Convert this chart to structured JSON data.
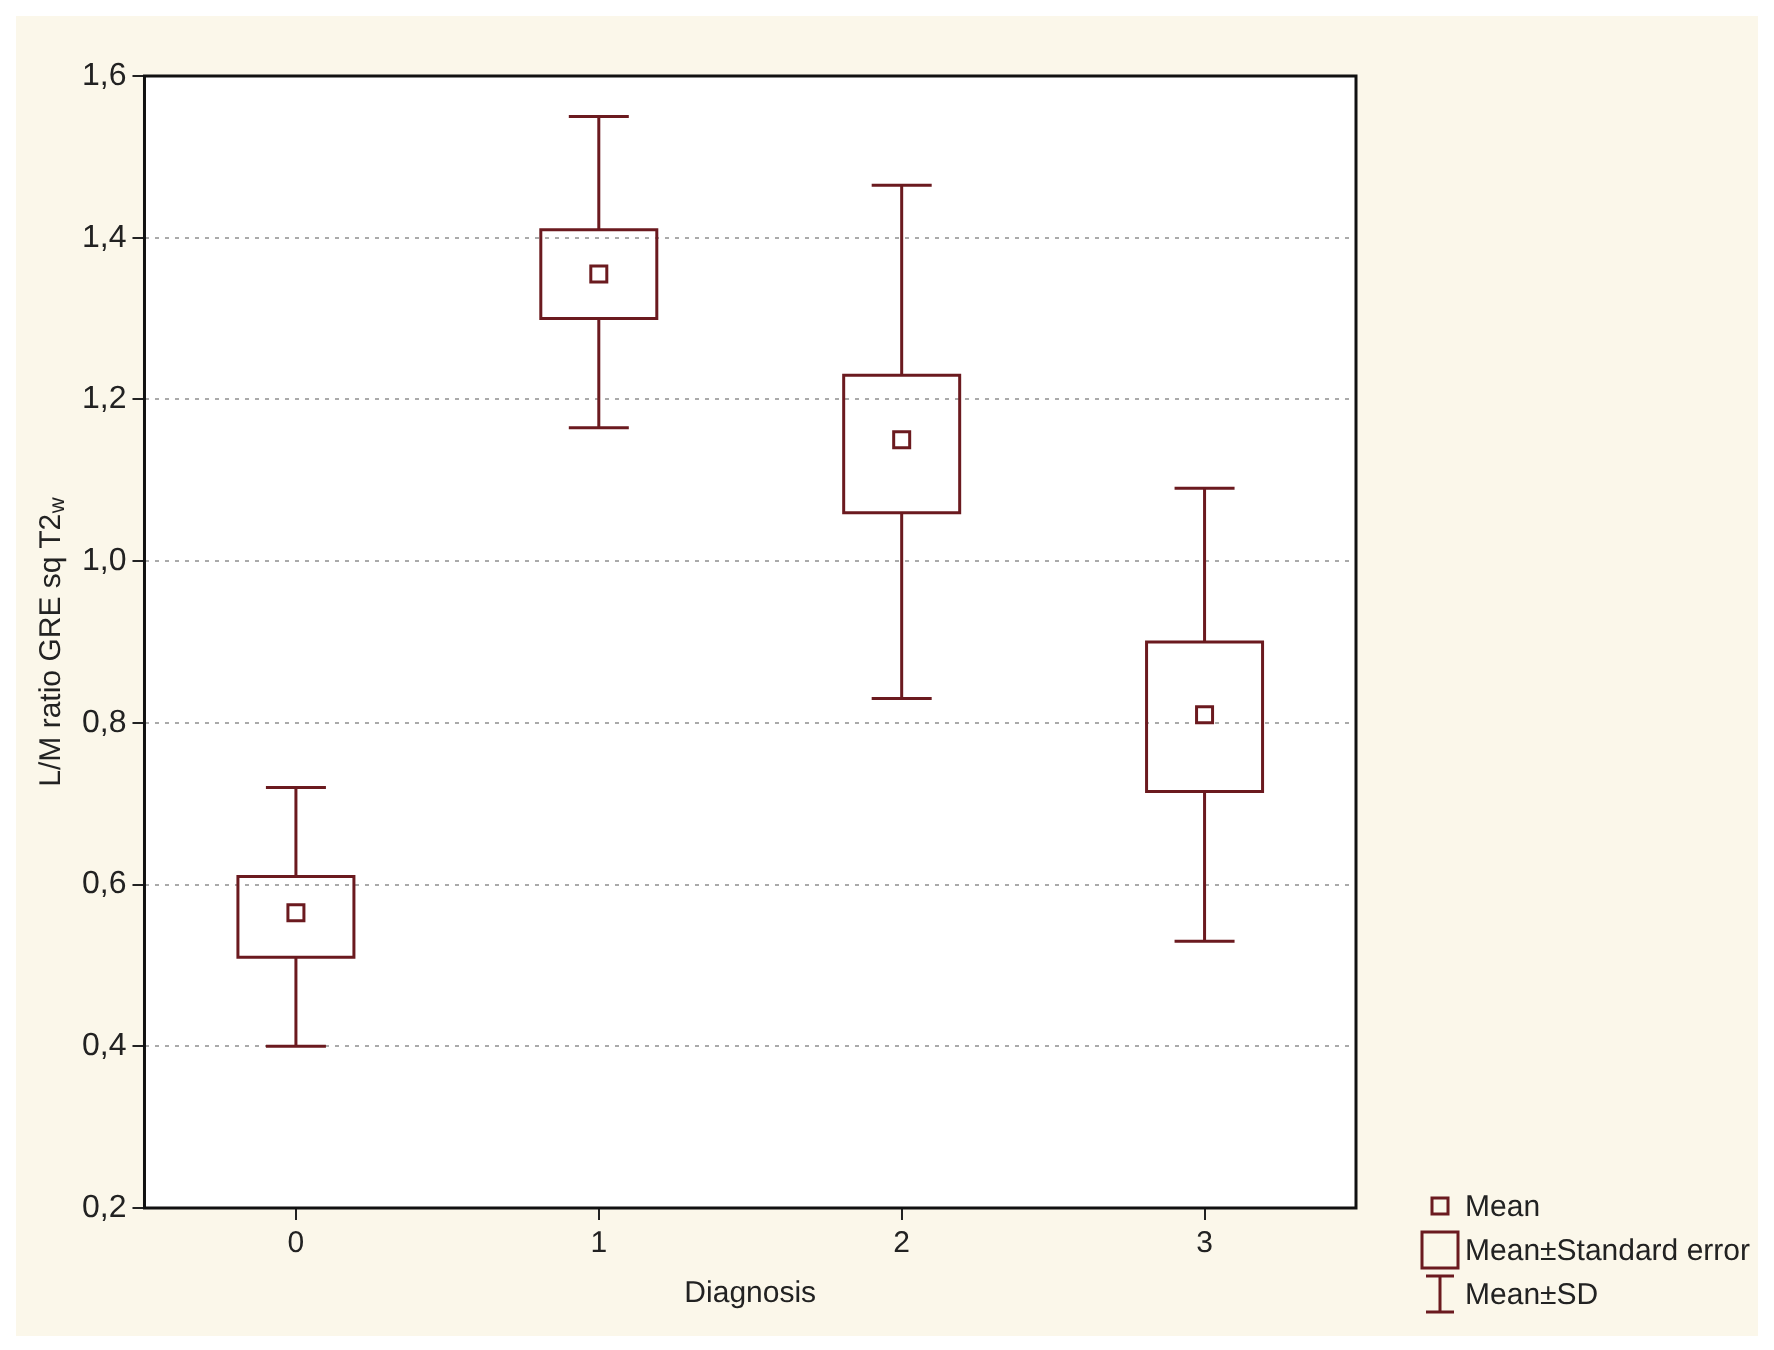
{
  "chart_data": {
    "type": "box",
    "xlabel": "Diagnosis",
    "ylabel": "L/M ratio GRE sq T2$_{w}$",
    "categories": [
      "0",
      "1",
      "2",
      "3"
    ],
    "boxes": [
      {
        "low": 0.4,
        "q1": 0.51,
        "median": 0.565,
        "q3": 0.61,
        "high": 0.72
      },
      {
        "low": 1.165,
        "q1": 1.3,
        "median": 1.355,
        "q3": 1.41,
        "high": 1.55
      },
      {
        "low": 0.83,
        "q1": 1.06,
        "median": 1.15,
        "q3": 1.23,
        "high": 1.465
      },
      {
        "low": 0.53,
        "q1": 0.715,
        "median": 0.81,
        "q3": 0.9,
        "high": 1.09
      }
    ],
    "color": "#6b1a1f",
    "ylim": [
      0.2,
      1.6
    ],
    "yticks": [
      {
        "value": 0.2,
        "label": "0,2"
      },
      {
        "value": 0.4,
        "label": "0,4"
      },
      {
        "value": 0.6,
        "label": "0,6"
      },
      {
        "value": 0.8,
        "label": "0,8"
      },
      {
        "value": 1.0,
        "label": "1,0"
      },
      {
        "value": 1.2,
        "label": "1,2"
      },
      {
        "value": 1.4,
        "label": "1,4"
      },
      {
        "value": 1.6,
        "label": "1,6"
      }
    ],
    "grid": "y",
    "annotations": [
      "Mean",
      "Mean±Standard error",
      "Mean±SD"
    ]
  }
}
